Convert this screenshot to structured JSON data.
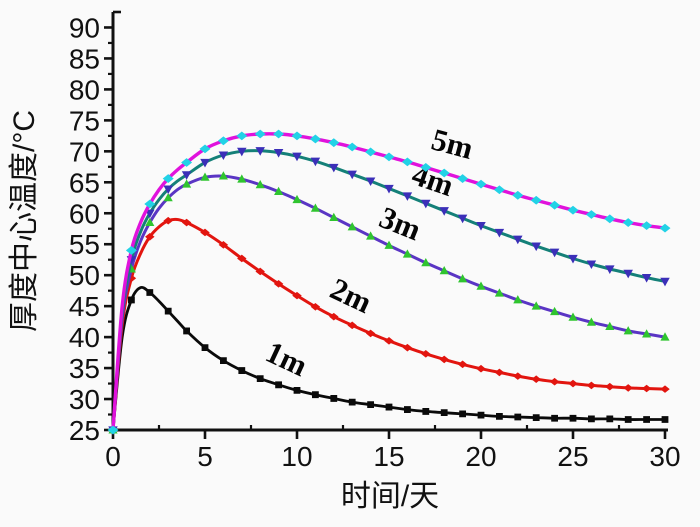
{
  "figure": {
    "background": "#fafafa",
    "axis_color": "#111111"
  },
  "chart_data": {
    "type": "line",
    "title": "",
    "xlabel": "时间/天",
    "ylabel": "厚度中心温度/°C",
    "xlim": [
      0,
      30
    ],
    "ylim": [
      25,
      92.5
    ],
    "x_ticks": [
      0,
      5,
      10,
      15,
      20,
      25,
      30
    ],
    "y_ticks": [
      25,
      30,
      35,
      40,
      45,
      50,
      55,
      60,
      65,
      70,
      75,
      80,
      85,
      90
    ],
    "x_minor_step": 2.5,
    "y_minor_step": 2.5,
    "grid": false,
    "legend_position": "inline-curve-labels",
    "x": [
      0,
      0.5,
      1,
      1.5,
      2,
      2.5,
      3,
      3.5,
      4,
      5,
      6,
      7,
      8,
      9,
      10,
      11,
      12,
      13,
      14,
      15,
      16,
      17,
      18,
      19,
      20,
      21,
      22,
      23,
      24,
      25,
      26,
      27,
      28,
      29,
      30
    ],
    "series": [
      {
        "name": "1m",
        "line_color": "#0a0a0a",
        "marker_color": "#0a0a0a",
        "marker": "square",
        "marker_size": 3.4,
        "line_width": 2.8,
        "label": {
          "x": 9.2,
          "y": 35.0,
          "angle": 25
        },
        "values": [
          25,
          40,
          46,
          48,
          47.2,
          45.8,
          44.2,
          42.6,
          41.0,
          38.3,
          36.2,
          34.6,
          33.3,
          32.3,
          31.4,
          30.7,
          30.1,
          29.5,
          29.1,
          28.7,
          28.3,
          28.0,
          27.8,
          27.6,
          27.4,
          27.2,
          27.1,
          27.0,
          26.9,
          26.9,
          26.8,
          26.8,
          26.7,
          26.7,
          26.7
        ]
      },
      {
        "name": "2m",
        "line_color": "#e2150f",
        "marker_color": "#e2150f",
        "marker": "diamond",
        "marker_size": 3.8,
        "line_width": 3,
        "label": {
          "x": 12.7,
          "y": 45.2,
          "angle": 25
        },
        "values": [
          25,
          42,
          49.5,
          53.5,
          56.2,
          57.8,
          58.8,
          59.0,
          58.5,
          56.9,
          54.9,
          52.7,
          50.6,
          48.6,
          46.7,
          44.9,
          43.3,
          41.9,
          40.6,
          39.4,
          38.3,
          37.3,
          36.4,
          35.6,
          34.9,
          34.3,
          33.7,
          33.2,
          32.8,
          32.5,
          32.2,
          32.0,
          31.8,
          31.7,
          31.6
        ]
      },
      {
        "name": "3m",
        "line_color": "#5a35c4",
        "marker_color": "#2fc42f",
        "marker": "triangle-up",
        "marker_size": 4.8,
        "line_width": 3,
        "label": {
          "x": 15.4,
          "y": 56.8,
          "angle": 22
        },
        "values": [
          25,
          43,
          51,
          55.5,
          58.5,
          60.8,
          62.5,
          63.8,
          64.7,
          65.8,
          66.0,
          65.5,
          64.6,
          63.5,
          62.2,
          60.8,
          59.3,
          57.8,
          56.3,
          54.8,
          53.4,
          52.0,
          50.7,
          49.4,
          48.2,
          47.1,
          46.0,
          45.0,
          44.1,
          43.2,
          42.4,
          41.7,
          41.0,
          40.5,
          40.0
        ]
      },
      {
        "name": "4m",
        "line_color": "#148078",
        "marker_color": "#3b2fb8",
        "marker": "triangle-down",
        "marker_size": 5,
        "line_width": 3,
        "label": {
          "x": 17.2,
          "y": 63.8,
          "angle": 19
        },
        "values": [
          25,
          44,
          52.5,
          57,
          60,
          62.2,
          63.9,
          65.2,
          66.2,
          68.2,
          69.4,
          70.0,
          70.1,
          69.8,
          69.2,
          68.4,
          67.4,
          66.3,
          65.2,
          64.0,
          62.8,
          61.6,
          60.4,
          59.2,
          58.0,
          56.9,
          55.8,
          54.7,
          53.7,
          52.7,
          51.8,
          51.0,
          50.3,
          49.6,
          49.0
        ]
      },
      {
        "name": "5m",
        "line_color": "#e012dc",
        "marker_color": "#22d2e6",
        "marker": "diamond",
        "marker_size": 4.4,
        "line_width": 3.4,
        "label": {
          "x": 18.3,
          "y": 69.6,
          "angle": 15
        },
        "values": [
          25,
          45,
          54,
          58.5,
          61.5,
          63.8,
          65.6,
          67.0,
          68.2,
          70.4,
          71.7,
          72.5,
          72.8,
          72.8,
          72.5,
          72.0,
          71.4,
          70.7,
          69.9,
          69.1,
          68.3,
          67.4,
          66.5,
          65.6,
          64.7,
          63.8,
          62.9,
          62.1,
          61.3,
          60.5,
          59.8,
          59.1,
          58.5,
          58.0,
          57.6
        ]
      }
    ]
  }
}
